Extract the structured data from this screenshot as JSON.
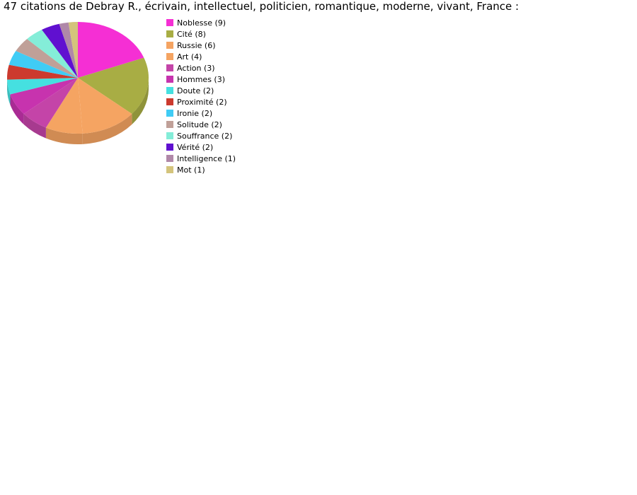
{
  "chart_data": {
    "type": "pie",
    "title": "47 citations de Debray R., écrivain, intellectuel, politicien, romantique, moderne, vivant, France :",
    "style": "3d",
    "legend_position": "right",
    "slices": [
      {
        "label": "Noblesse (9)",
        "value": 9,
        "color": "#f52fd4"
      },
      {
        "label": "Cité (8)",
        "value": 8,
        "color": "#a8ad44"
      },
      {
        "label": "Russie (6)",
        "value": 6,
        "color": "#f5a462"
      },
      {
        "label": "Art (4)",
        "value": 4,
        "color": "#f5a462"
      },
      {
        "label": "Action (3)",
        "value": 3,
        "color": "#c444a8"
      },
      {
        "label": "Hommes (3)",
        "value": 3,
        "color": "#c733ae"
      },
      {
        "label": "Doute (2)",
        "value": 2,
        "color": "#45e0e0"
      },
      {
        "label": "Proximité (2)",
        "value": 2,
        "color": "#cc3a2e"
      },
      {
        "label": "Ironie (2)",
        "value": 2,
        "color": "#40ccf5"
      },
      {
        "label": "Solitude (2)",
        "value": 2,
        "color": "#c0a098"
      },
      {
        "label": "Souffrance (2)",
        "value": 2,
        "color": "#84edd8"
      },
      {
        "label": "Vérité (2)",
        "value": 2,
        "color": "#6010d0"
      },
      {
        "label": "Intelligence (1)",
        "value": 1,
        "color": "#b088a8"
      },
      {
        "label": "Mot (1)",
        "value": 1,
        "color": "#d4c47c"
      }
    ]
  }
}
